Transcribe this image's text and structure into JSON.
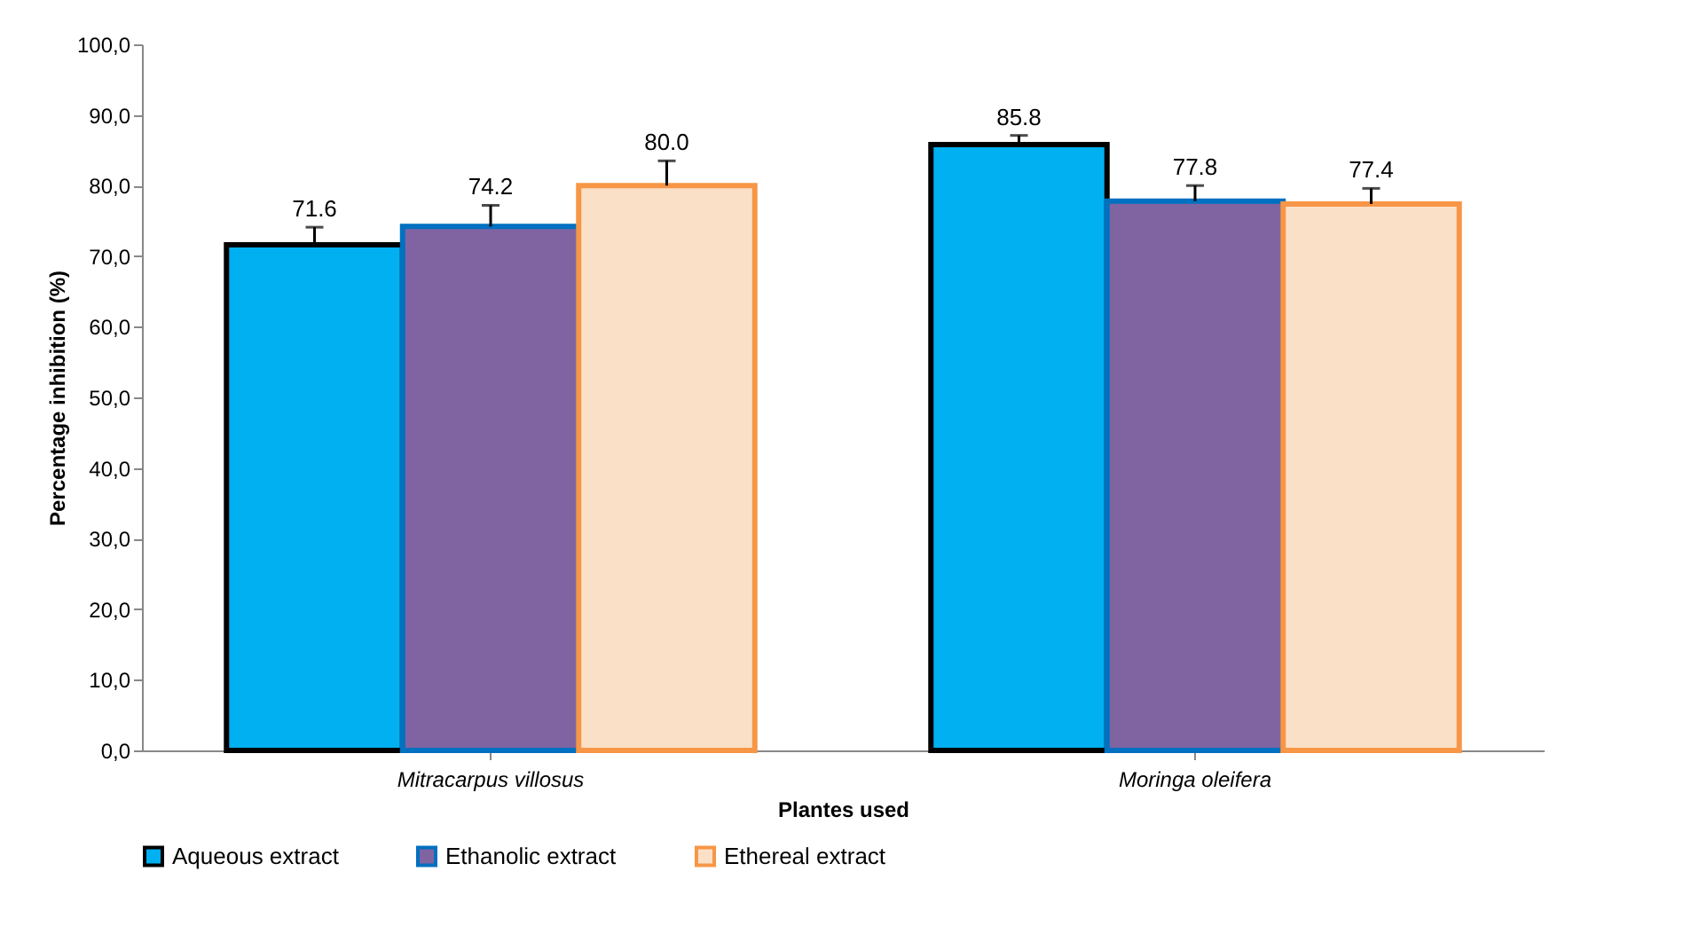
{
  "chart_data": {
    "type": "bar",
    "xlabel": "Plantes used",
    "ylabel": "Percentage inhibition (%)",
    "categories": [
      "Mitracarpus villosus",
      "Moringa oleifera"
    ],
    "series": [
      {
        "name": "Aqueous extract",
        "color": "#00b0f0",
        "values": [
          71.6,
          85.8
        ],
        "value_labels": [
          "71.6",
          "85.8"
        ],
        "errors": [
          [
            71.6,
            74.1
          ],
          [
            85.8,
            87.1
          ]
        ]
      },
      {
        "name": "Ethanolic extract",
        "color": "#8064a2",
        "values": [
          74.2,
          77.8
        ],
        "value_labels": [
          "74.2",
          "77.8"
        ],
        "errors": [
          [
            74.2,
            77.2
          ],
          [
            77.8,
            80.0
          ]
        ]
      },
      {
        "name": "Ethereal extract",
        "color": "#fbe0c8",
        "values": [
          80.0,
          77.4
        ],
        "value_labels": [
          "80.0",
          "77.4"
        ],
        "errors": [
          [
            80.0,
            83.5
          ],
          [
            77.4,
            79.6
          ]
        ]
      }
    ],
    "ylim": [
      0,
      100
    ],
    "yticks": [
      {
        "value": 0,
        "label": "0,0"
      },
      {
        "value": 10,
        "label": "10,0"
      },
      {
        "value": 20,
        "label": "20,0"
      },
      {
        "value": 30,
        "label": "30,0"
      },
      {
        "value": 40,
        "label": "40,0"
      },
      {
        "value": 50,
        "label": "50,0"
      },
      {
        "value": 60,
        "label": "60,0"
      },
      {
        "value": 70,
        "label": "70,0"
      },
      {
        "value": 80,
        "label": "80,0"
      },
      {
        "value": 90,
        "label": "90,0"
      },
      {
        "value": 100,
        "label": "100,0"
      }
    ],
    "data_labels": true,
    "legend": "bottom",
    "grid": false
  }
}
